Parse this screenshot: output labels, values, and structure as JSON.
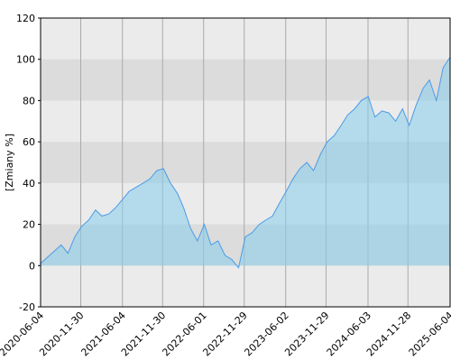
{
  "chart_data": {
    "type": "area",
    "y_label": "[Zmiany %]",
    "xlim": [
      "2020-06-04",
      "2025-06-04"
    ],
    "xticks": [
      "2020-06-04",
      "2020-11-30",
      "2021-06-04",
      "2021-11-30",
      "2022-06-01",
      "2022-11-29",
      "2023-06-02",
      "2023-11-29",
      "2024-06-03",
      "2024-11-28",
      "2025-06-04"
    ],
    "ylim": [
      -20,
      120
    ],
    "yticks": [
      -20,
      0,
      20,
      40,
      60,
      80,
      100,
      120
    ],
    "grid": true,
    "series": [
      {
        "color": "#4a9be8",
        "x": [
          "2020-06-04",
          "2020-07-04",
          "2020-08-04",
          "2020-09-04",
          "2020-10-04",
          "2020-11-04",
          "2020-12-04",
          "2021-01-04",
          "2021-02-04",
          "2021-03-04",
          "2021-04-04",
          "2021-05-04",
          "2021-06-04",
          "2021-07-04",
          "2021-08-04",
          "2021-09-04",
          "2021-10-04",
          "2021-11-04",
          "2021-12-04",
          "2022-01-04",
          "2022-02-04",
          "2022-03-04",
          "2022-04-04",
          "2022-05-04",
          "2022-06-04",
          "2022-07-04",
          "2022-08-04",
          "2022-09-04",
          "2022-10-04",
          "2022-11-04",
          "2022-12-04",
          "2023-01-04",
          "2023-02-04",
          "2023-03-04",
          "2023-04-04",
          "2023-05-04",
          "2023-06-04",
          "2023-07-04",
          "2023-08-04",
          "2023-09-04",
          "2023-10-04",
          "2023-11-04",
          "2023-12-04",
          "2024-01-04",
          "2024-02-04",
          "2024-03-04",
          "2024-04-04",
          "2024-05-04",
          "2024-06-04",
          "2024-07-04",
          "2024-08-04",
          "2024-09-04",
          "2024-10-04",
          "2024-11-04",
          "2024-12-04",
          "2025-01-04",
          "2025-02-04",
          "2025-03-04",
          "2025-04-04",
          "2025-05-04",
          "2025-06-04"
        ],
        "values": [
          1,
          4,
          7,
          10,
          6,
          14,
          19,
          22,
          27,
          24,
          25,
          28,
          32,
          36,
          38,
          40,
          42,
          46,
          47,
          40,
          35,
          28,
          18,
          12,
          20,
          10,
          12,
          5,
          3,
          -1,
          14,
          16,
          20,
          22,
          24,
          30,
          36,
          42,
          47,
          50,
          46,
          54,
          60,
          63,
          68,
          73,
          76,
          80,
          82,
          72,
          75,
          74,
          70,
          76,
          68,
          78,
          86,
          90,
          80,
          96,
          101
        ]
      }
    ]
  }
}
